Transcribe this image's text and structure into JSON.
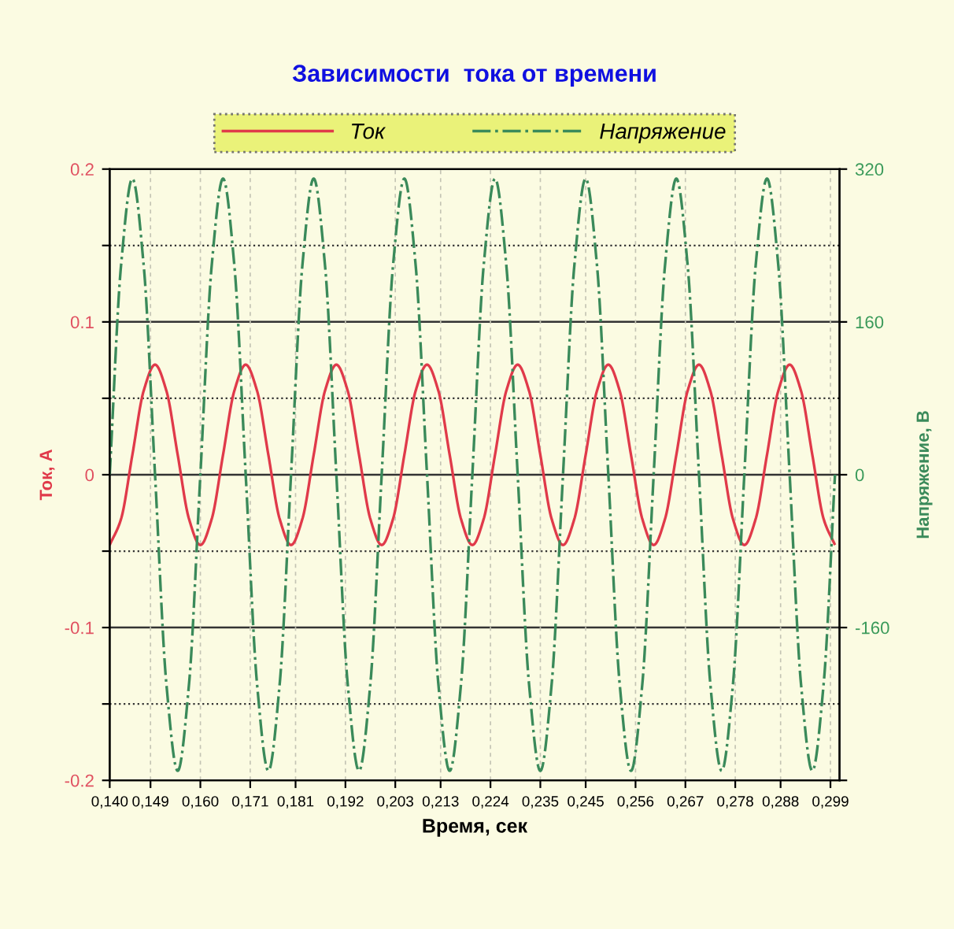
{
  "chart_data": {
    "type": "line",
    "title": "Зависимости  тока от времени",
    "xlabel": "Время, сек",
    "ylabel": "Ток, А",
    "y2label": "Напряжение, В",
    "x": [
      0.14,
      0.1425,
      0.145,
      0.1475,
      0.15,
      0.1525,
      0.155,
      0.1575,
      0.16,
      0.1625,
      0.165,
      0.1675,
      0.17,
      0.1725,
      0.175,
      0.1775,
      0.18,
      0.1825,
      0.185,
      0.1875,
      0.19,
      0.1925,
      0.195,
      0.1975,
      0.2,
      0.2025,
      0.205,
      0.2075,
      0.21,
      0.2125,
      0.215,
      0.2175,
      0.22,
      0.2225,
      0.225,
      0.2275,
      0.23,
      0.2325,
      0.235,
      0.2375,
      0.24,
      0.2425,
      0.245,
      0.2475,
      0.25,
      0.2525,
      0.255,
      0.2575,
      0.26,
      0.2625,
      0.265,
      0.2675,
      0.27,
      0.2725,
      0.275,
      0.2775,
      0.28,
      0.2825,
      0.285,
      0.2875,
      0.29,
      0.2925,
      0.295,
      0.2975,
      0.3
    ],
    "series": [
      {
        "name": "Ток",
        "color": "#e03a4a",
        "line_style": "solid",
        "values": [
          -0.046,
          -0.029,
          0.013,
          0.055,
          0.072,
          0.055,
          0.013,
          -0.029,
          -0.046,
          -0.029,
          0.013,
          0.055,
          0.072,
          0.055,
          0.013,
          -0.029,
          -0.046,
          -0.029,
          0.013,
          0.055,
          0.072,
          0.055,
          0.013,
          -0.029,
          -0.046,
          -0.029,
          0.013,
          0.055,
          0.072,
          0.055,
          0.013,
          -0.029,
          -0.046,
          -0.029,
          0.013,
          0.055,
          0.072,
          0.055,
          0.013,
          -0.029,
          -0.046,
          -0.029,
          0.013,
          0.055,
          0.072,
          0.055,
          0.013,
          -0.029,
          -0.046,
          -0.029,
          0.013,
          0.055,
          0.072,
          0.055,
          0.013,
          -0.029,
          -0.046,
          -0.029,
          0.013,
          0.055,
          0.072,
          0.055,
          0.013,
          -0.029,
          -0.046
        ]
      },
      {
        "name": "Напряжение",
        "color": "#3a8a5a",
        "line_style": "dashdot",
        "axis": "y2",
        "values": [
          0,
          219,
          310,
          219,
          0,
          -219,
          -310,
          -219,
          0,
          219,
          310,
          219,
          0,
          -219,
          -310,
          -219,
          0,
          219,
          310,
          219,
          0,
          -219,
          -310,
          -219,
          0,
          219,
          310,
          219,
          0,
          -219,
          -310,
          -219,
          0,
          219,
          310,
          219,
          0,
          -219,
          -310,
          -219,
          0,
          219,
          310,
          219,
          0,
          -219,
          -310,
          -219,
          0,
          219,
          310,
          219,
          0,
          -219,
          -310,
          -219,
          0,
          219,
          310,
          219,
          0,
          -219,
          -310,
          -219,
          0
        ]
      }
    ],
    "xlim": [
      0.14,
      0.301
    ],
    "xticks": [
      {
        "value": 0.14,
        "label": "0,140"
      },
      {
        "value": 0.149,
        "label": "0,149"
      },
      {
        "value": 0.16,
        "label": "0,160"
      },
      {
        "value": 0.171,
        "label": "0,171"
      },
      {
        "value": 0.181,
        "label": "0,181"
      },
      {
        "value": 0.192,
        "label": "0,192"
      },
      {
        "value": 0.203,
        "label": "0,203"
      },
      {
        "value": 0.213,
        "label": "0,213"
      },
      {
        "value": 0.224,
        "label": "0,224"
      },
      {
        "value": 0.235,
        "label": "0,235"
      },
      {
        "value": 0.245,
        "label": "0,245"
      },
      {
        "value": 0.256,
        "label": "0,256"
      },
      {
        "value": 0.267,
        "label": "0,267"
      },
      {
        "value": 0.278,
        "label": "0,278"
      },
      {
        "value": 0.288,
        "label": "0,288"
      },
      {
        "value": 0.299,
        "label": "0,299"
      }
    ],
    "ylim": [
      -0.2,
      0.2
    ],
    "yticks": [
      {
        "value": 0.2,
        "label": "0.2"
      },
      {
        "value": 0.15,
        "label": null
      },
      {
        "value": 0.1,
        "label": "0.1"
      },
      {
        "value": 0.05,
        "label": null
      },
      {
        "value": 0,
        "label": "0"
      },
      {
        "value": -0.05,
        "label": null
      },
      {
        "value": -0.1,
        "label": "-0.1"
      },
      {
        "value": -0.15,
        "label": null
      },
      {
        "value": -0.2,
        "label": "-0.2"
      }
    ],
    "y2lim": [
      -320,
      320
    ],
    "y2ticks": [
      320,
      160,
      0,
      -160,
      {
        "value": -320,
        "label": null
      }
    ],
    "grid": true,
    "legend": "top",
    "marker": "none"
  }
}
